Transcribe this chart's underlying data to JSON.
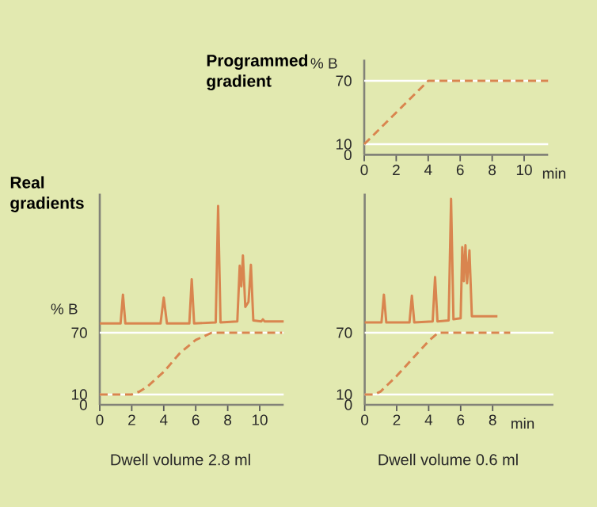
{
  "chart_data": [
    {
      "type": "line",
      "title": "Programmed gradient",
      "ylabel": "% B",
      "xlabel": "min",
      "xlim": [
        0,
        11.5
      ],
      "ylim": [
        0,
        90
      ],
      "xticks": [
        0,
        2,
        4,
        6,
        8,
        10
      ],
      "yticks": [
        0,
        10,
        70
      ],
      "ref_lines": [
        {
          "axis": "y",
          "value": 10,
          "color": "#ffffff"
        },
        {
          "axis": "y",
          "value": 70,
          "color": "#ffffff"
        }
      ],
      "series": [
        {
          "color": "#d9854f",
          "line_style": "dashed",
          "x": [
            0,
            4,
            11.5
          ],
          "values": [
            10,
            70,
            70
          ]
        }
      ]
    },
    {
      "type": "line",
      "title": "Dwell volume 2.8 ml",
      "ylabel": "% B",
      "annotations": [
        "Real gradients"
      ],
      "xlim": [
        0,
        11.5
      ],
      "ylim": [
        0,
        205
      ],
      "xticks": [
        0,
        2,
        4,
        6,
        8,
        10
      ],
      "yticks": [
        0,
        10,
        70
      ],
      "ref_lines": [
        {
          "axis": "y",
          "value": 10,
          "color": "#ffffff"
        },
        {
          "axis": "y",
          "value": 70,
          "color": "#ffffff"
        }
      ],
      "series": [
        {
          "color": "#d9854f",
          "line_style": "solid",
          "x": [
            0,
            1.3,
            1.45,
            1.6,
            3.8,
            4.0,
            4.2,
            5.6,
            5.75,
            5.9,
            7.25,
            7.4,
            7.55,
            8.6,
            8.75,
            8.85,
            8.95,
            9.1,
            9.3,
            9.45,
            9.6,
            10.1,
            10.2,
            10.3,
            11.5
          ],
          "values": [
            79,
            79,
            107,
            79,
            79,
            104,
            79,
            79,
            122,
            79,
            80,
            193,
            80,
            81,
            135,
            115,
            145,
            95,
            100,
            136,
            82,
            81,
            83,
            81,
            81
          ]
        },
        {
          "color": "#d9854f",
          "line_style": "dashed",
          "x": [
            0,
            2,
            2.5,
            3,
            4,
            5,
            6,
            7,
            11.4
          ],
          "values": [
            10,
            10,
            13,
            18,
            32,
            50,
            63,
            70,
            70
          ]
        }
      ]
    },
    {
      "type": "line",
      "title": "Dwell volume 0.6 ml",
      "xlabel": "min",
      "xlim": [
        0,
        11.8
      ],
      "ylim": [
        0,
        205
      ],
      "xticks": [
        0,
        2,
        4,
        6,
        8
      ],
      "yticks": [
        0,
        10,
        70
      ],
      "ref_lines": [
        {
          "axis": "y",
          "value": 10,
          "color": "#ffffff"
        },
        {
          "axis": "y",
          "value": 70,
          "color": "#ffffff"
        }
      ],
      "series": [
        {
          "color": "#d9854f",
          "line_style": "solid",
          "x": [
            0,
            1.05,
            1.2,
            1.35,
            2.8,
            2.95,
            3.1,
            4.25,
            4.4,
            4.55,
            5.25,
            5.4,
            5.55,
            6.0,
            6.1,
            6.2,
            6.3,
            6.4,
            6.55,
            6.7,
            8.3
          ],
          "values": [
            80,
            80,
            107,
            80,
            80,
            106,
            80,
            81,
            124,
            81,
            82,
            200,
            83,
            84,
            153,
            120,
            155,
            118,
            150,
            86,
            86
          ]
        },
        {
          "color": "#d9854f",
          "line_style": "dashed",
          "x": [
            0,
            0.6,
            1,
            2,
            3,
            4,
            4.6,
            9.1
          ],
          "values": [
            10,
            10,
            13,
            28,
            45,
            62,
            70,
            70
          ]
        }
      ]
    }
  ]
}
